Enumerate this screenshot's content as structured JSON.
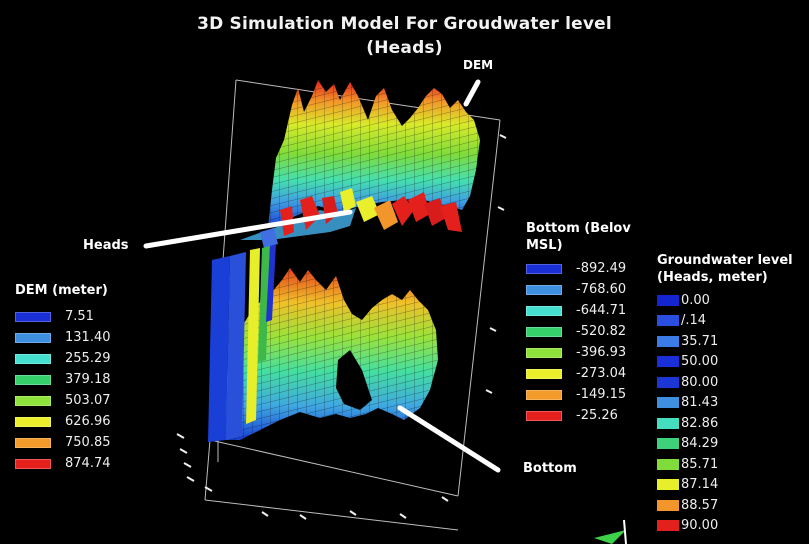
{
  "title": {
    "line1": "3D Simulation Model For Groudwater level",
    "line2": "(Heads)"
  },
  "labels": {
    "dem": "DEM",
    "heads": "Heads",
    "bottom": "Bottom"
  },
  "dem_legend": {
    "title": "DEM (meter)",
    "items": [
      {
        "value": "7.51",
        "color": "#1a2fd6"
      },
      {
        "value": "131.40",
        "color": "#3f8fe0"
      },
      {
        "value": "255.29",
        "color": "#45dfd0"
      },
      {
        "value": "379.18",
        "color": "#35d06a"
      },
      {
        "value": "503.07",
        "color": "#8ee23a"
      },
      {
        "value": "626.96",
        "color": "#e9ef2a"
      },
      {
        "value": "750.85",
        "color": "#f29a2a"
      },
      {
        "value": "874.74",
        "color": "#e4201c"
      }
    ]
  },
  "bottom_legend": {
    "title_line1": "Bottom (Belov",
    "title_line2": "MSL)",
    "items": [
      {
        "value": "-892.49",
        "color": "#1a2fd6"
      },
      {
        "value": "-768.60",
        "color": "#3f8fe0"
      },
      {
        "value": "-644.71",
        "color": "#45dfd0"
      },
      {
        "value": "-520.82",
        "color": "#35d06a"
      },
      {
        "value": "-396.93",
        "color": "#8ee23a"
      },
      {
        "value": "-273.04",
        "color": "#e9ef2a"
      },
      {
        "value": "-149.15",
        "color": "#f29a2a"
      },
      {
        "value": "-25.26",
        "color": "#e4201c"
      }
    ]
  },
  "gw_legend": {
    "title_line1": "Groundwater level",
    "title_line2": "(Heads, meter)",
    "items": [
      {
        "value": "0.00",
        "color": "#1424d0"
      },
      {
        "value": "/.14",
        "color": "#2a4fe0"
      },
      {
        "value": "35.71",
        "color": "#3b7be8"
      },
      {
        "value": "50.00",
        "color": "#1b2fd8"
      },
      {
        "value": "80.00",
        "color": "#1c36d6"
      },
      {
        "value": "81.43",
        "color": "#3f8fe0"
      },
      {
        "value": "82.86",
        "color": "#45dfc0"
      },
      {
        "value": "84.29",
        "color": "#3fd07a"
      },
      {
        "value": "85.71",
        "color": "#7fdc3a"
      },
      {
        "value": "87.14",
        "color": "#e6ef2a"
      },
      {
        "value": "88.57",
        "color": "#f2952a"
      },
      {
        "value": "90.00",
        "color": "#e4201c"
      }
    ]
  }
}
